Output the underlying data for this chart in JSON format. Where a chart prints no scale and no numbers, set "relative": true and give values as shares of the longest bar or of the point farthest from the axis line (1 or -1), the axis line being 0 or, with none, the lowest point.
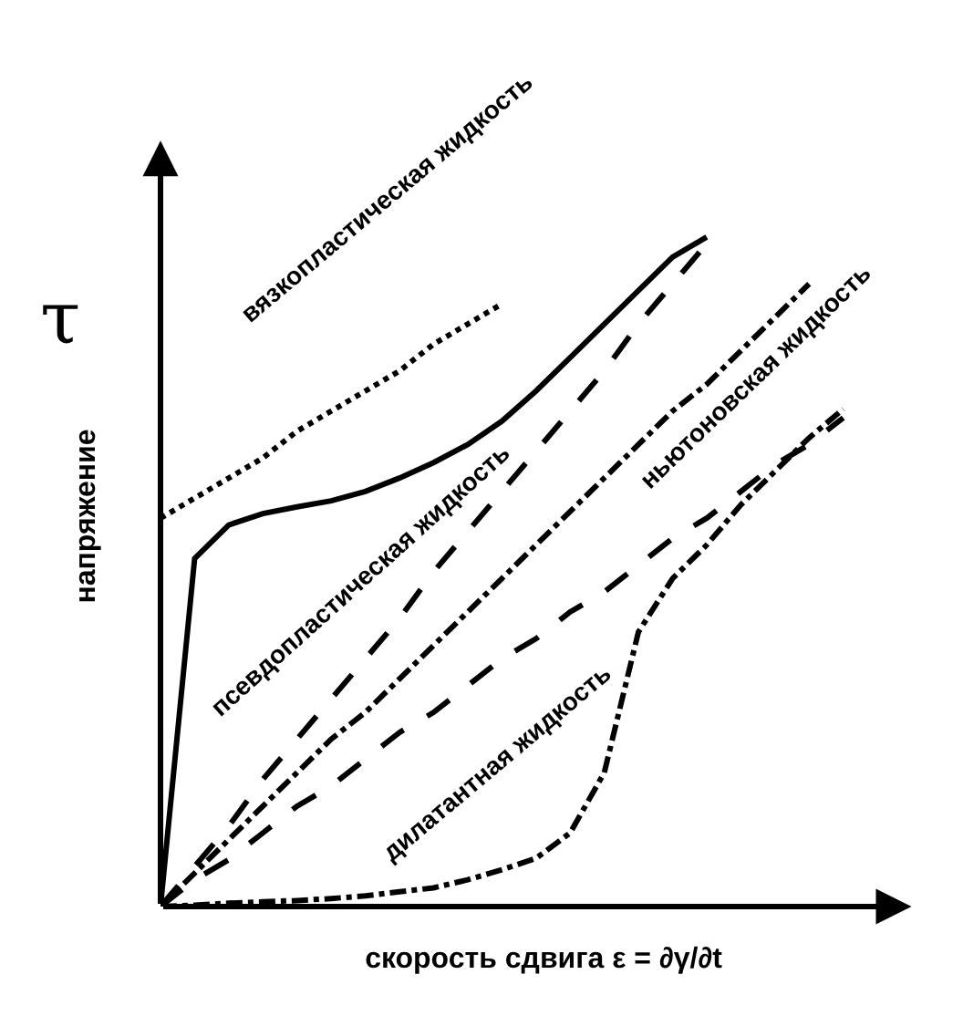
{
  "chart_data": {
    "type": "line",
    "relative": true,
    "xlabel": "скорость сдвига ε = ∂γ/∂t",
    "ylabel": "напряжение",
    "annotations": [
      "τ"
    ],
    "legend": false,
    "marker": "none",
    "categories": [
      null,
      null,
      null,
      null,
      null,
      null,
      null,
      null,
      null,
      null,
      null,
      null,
      null,
      null,
      null,
      null,
      null,
      null,
      null,
      null,
      null
    ],
    "series": [
      {
        "name": "вязкопластическая жидкость",
        "color": "#000000",
        "line_style": "dotted",
        "values": [
          0.58,
          0.61,
          0.64,
          0.67,
          0.71,
          0.74,
          0.77,
          0.8,
          0.84,
          0.87,
          0.9,
          null,
          null,
          null,
          null,
          null,
          null,
          null,
          null,
          null,
          null
        ]
      },
      {
        "name": "псевдопластическая жидкость",
        "color": "#000000",
        "line_style": "solid",
        "values": [
          0,
          0.52,
          0.57,
          0.587,
          0.597,
          0.606,
          0.62,
          0.64,
          0.663,
          0.69,
          0.725,
          0.77,
          0.82,
          0.87,
          0.92,
          0.97,
          1.0,
          null,
          null,
          null,
          null
        ]
      },
      {
        "color": "#000000",
        "line_style": "dashed",
        "values": [
          0,
          0.06,
          0.12,
          0.19,
          0.25,
          0.31,
          0.37,
          0.43,
          0.5,
          0.56,
          0.62,
          0.68,
          0.74,
          0.8,
          0.87,
          0.93,
          0.99,
          null,
          null,
          null,
          null
        ]
      },
      {
        "name": "ньютоновская жидкость",
        "color": "#000000",
        "line_style": "dashdot",
        "values": [
          0,
          0.05,
          0.1,
          0.15,
          0.2,
          0.25,
          0.29,
          0.34,
          0.39,
          0.44,
          0.49,
          0.54,
          0.59,
          0.64,
          0.69,
          0.74,
          0.78,
          0.83,
          0.88,
          0.93,
          null
        ]
      },
      {
        "color": "#000000",
        "line_style": "dashed",
        "values": [
          0,
          0.04,
          0.07,
          0.11,
          0.15,
          0.18,
          0.22,
          0.26,
          0.29,
          0.33,
          0.37,
          0.4,
          0.44,
          0.47,
          0.51,
          0.55,
          0.58,
          0.62,
          0.66,
          0.69,
          0.73
        ]
      },
      {
        "name": "дилатантная жидкость",
        "color": "#000000",
        "line_style": "dashdot",
        "values": [
          0,
          0.002,
          0.005,
          0.007,
          0.009,
          0.012,
          0.016,
          0.022,
          0.028,
          0.04,
          0.055,
          0.072,
          0.11,
          0.2,
          0.41,
          0.49,
          0.54,
          0.6,
          0.65,
          0.7,
          0.743
        ]
      }
    ]
  }
}
